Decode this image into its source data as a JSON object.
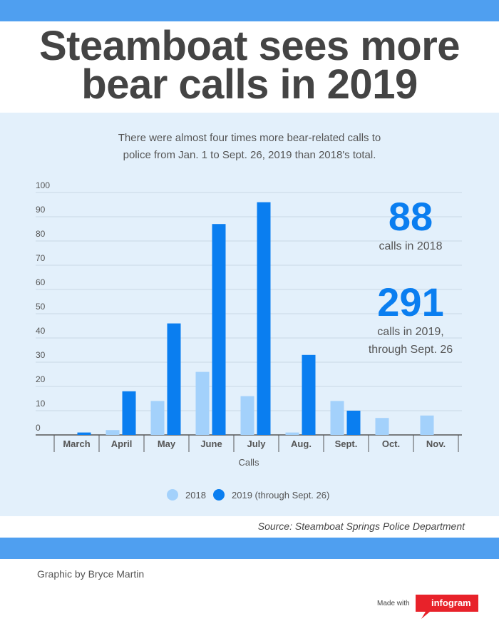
{
  "header": {
    "title_line1": "Steamboat sees more",
    "title_line2": "bear calls in 2019"
  },
  "subtitle_line1": "There were almost four times more bear-related calls to",
  "subtitle_line2": "police from Jan. 1 to Sept. 26, 2019 than 2018's total.",
  "stats": {
    "total_2018": "88",
    "label_2018": "calls in 2018",
    "total_2019": "291",
    "label_2019_line1": "calls in 2019,",
    "label_2019_line2": "through Sept. 26"
  },
  "source": "Source: Steamboat Springs Police Department",
  "credit": "Graphic by Bryce Martin",
  "branding": {
    "made_with": "Made with",
    "brand": "infogram"
  },
  "colors": {
    "accent_bar": "#4f9ff0",
    "panel_bg": "#e3f0fb",
    "series_2018": "#a3d1fb",
    "series_2019": "#0a7ef0",
    "title_text": "#444444",
    "brand_red": "#e8222a"
  },
  "chart_data": {
    "type": "bar",
    "categories": [
      "March",
      "April",
      "May",
      "June",
      "July",
      "Aug.",
      "Sept.",
      "Oct.",
      "Nov."
    ],
    "series": [
      {
        "name": "2018",
        "values": [
          0,
          2,
          14,
          26,
          16,
          1,
          14,
          7,
          8
        ]
      },
      {
        "name": "2019 (through Sept. 26)",
        "values": [
          1,
          18,
          46,
          87,
          96,
          33,
          10,
          0,
          0
        ]
      }
    ],
    "xlabel": "Calls",
    "ylabel": "",
    "ylim": [
      0,
      100
    ],
    "yticks": [
      0,
      10,
      20,
      30,
      40,
      50,
      60,
      70,
      80,
      90,
      100
    ],
    "grid": true,
    "legend": "bottom-center"
  }
}
